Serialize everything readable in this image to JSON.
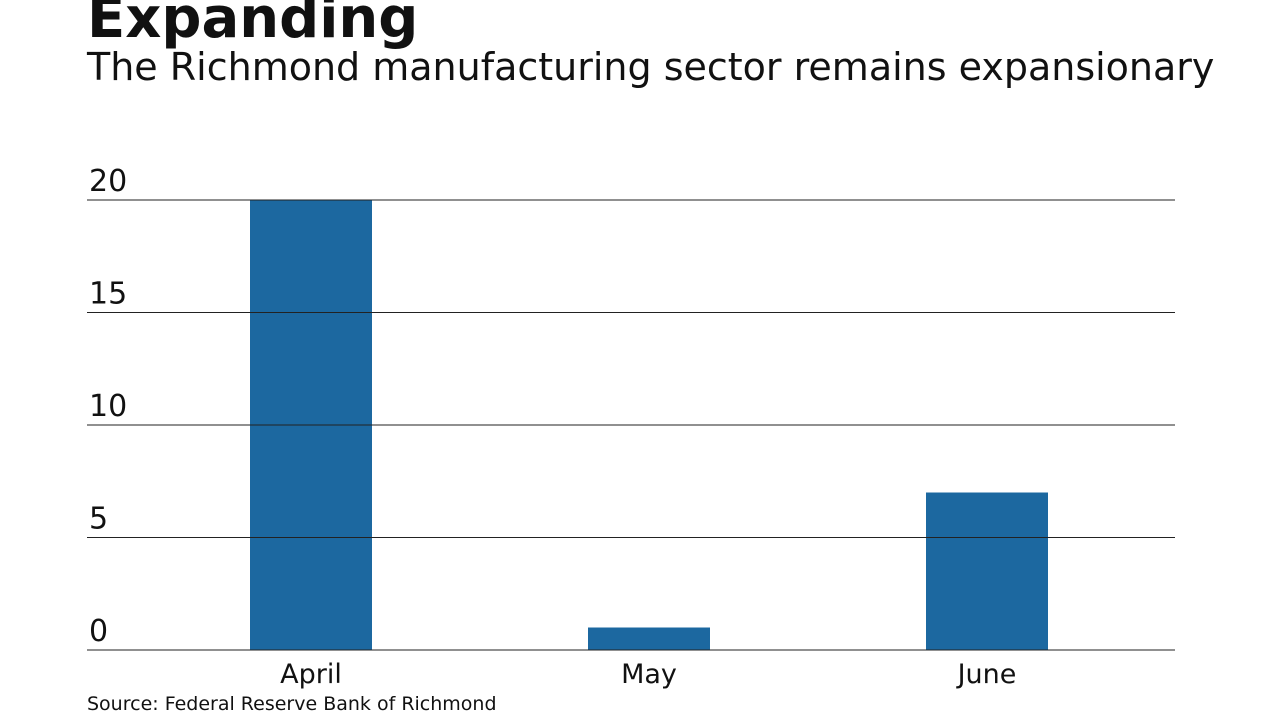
{
  "chart_data": {
    "type": "bar",
    "title": "Expanding",
    "subtitle": "The Richmond manufacturing sector remains expansionary",
    "categories": [
      "April",
      "May",
      "June"
    ],
    "values": [
      20,
      1,
      7
    ],
    "color": "#1c68a0",
    "ylim": [
      0,
      20
    ],
    "yticks": [
      0,
      5,
      10,
      15,
      20
    ],
    "grid": true,
    "source": "Source: Federal Reserve Bank of Richmond"
  }
}
